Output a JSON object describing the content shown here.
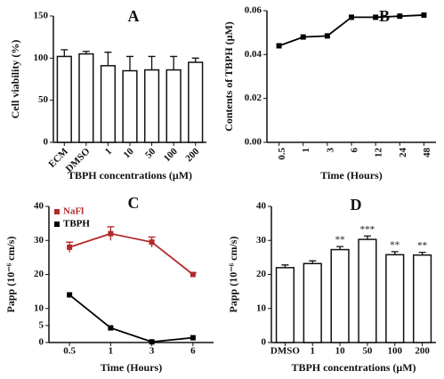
{
  "chart_data": [
    {
      "type": "bar",
      "title": "A",
      "y_label": "Cell viability (%)",
      "x_label": "TBPH concentrations (μM)",
      "categories": [
        "ECM",
        "DMSO",
        "1",
        "10",
        "50",
        "100",
        "200"
      ],
      "values": [
        102,
        105,
        91,
        85,
        86,
        86,
        95
      ],
      "errors": [
        8,
        3,
        16,
        17,
        16,
        16,
        5
      ],
      "color": "#ffffff",
      "ylim": [
        0,
        150
      ],
      "yticks": [
        0,
        50,
        100,
        150
      ]
    },
    {
      "type": "line",
      "title": "B",
      "y_label": "Contents of TBPH (μM)",
      "x_label": "Time (Hours)",
      "categories": [
        "0.5",
        "1",
        "3",
        "6",
        "12",
        "24",
        "48"
      ],
      "values": [
        0.044,
        0.048,
        0.0485,
        0.057,
        0.057,
        0.0575,
        0.058
      ],
      "color": "#000000",
      "ylim": [
        0,
        0.06
      ],
      "yticks": [
        {
          "value": 0,
          "label": "0.00"
        },
        0.02,
        0.04,
        0.06
      ]
    },
    {
      "type": "line",
      "title": "C",
      "y_label": "Papp (10⁻⁶ cm/s)",
      "x_label": "Time (Hours)",
      "categories": [
        "0.5",
        "1",
        "3",
        "6"
      ],
      "series": [
        {
          "name": "NaFl",
          "color": "#b22a2a",
          "values": [
            28,
            32,
            29.5,
            20
          ],
          "errors": [
            1.5,
            2,
            1.5,
            0.5
          ]
        },
        {
          "name": "TBPH",
          "color": "#000000",
          "values": [
            14,
            4.3,
            0.2,
            1.4
          ]
        }
      ],
      "legend": "upper left",
      "ylim": [
        0,
        40
      ],
      "yticks": [
        0,
        5,
        10,
        20,
        30,
        40
      ]
    },
    {
      "type": "bar",
      "title": "D",
      "y_label": "Papp (10⁻⁶ cm/s)",
      "x_label": "TBPH concentrations (μM)",
      "categories": [
        "DMSO",
        "1",
        "10",
        "50",
        "100",
        "200"
      ],
      "values": [
        22,
        23.2,
        27.3,
        30.3,
        25.8,
        25.7
      ],
      "errors": [
        0.8,
        0.8,
        0.9,
        1,
        0.9,
        0.8
      ],
      "annotations": [
        null,
        null,
        "**",
        "***",
        "**",
        "**"
      ],
      "color": "#ffffff",
      "ylim": [
        0,
        40
      ],
      "yticks": [
        0,
        10,
        20,
        30,
        40
      ]
    }
  ]
}
